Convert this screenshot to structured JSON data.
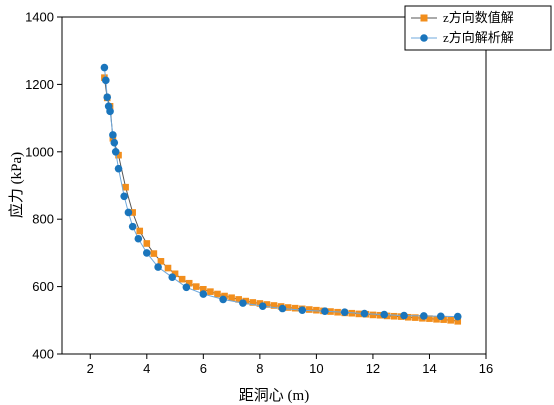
{
  "chart_data": {
    "type": "line",
    "xlabel": "距洞心 (m)",
    "ylabel": "应力 (kPa)",
    "xlim": [
      1,
      16
    ],
    "ylim": [
      400,
      1400
    ],
    "x_ticks": [
      2,
      4,
      6,
      8,
      10,
      12,
      14,
      16
    ],
    "y_ticks": [
      400,
      600,
      800,
      1000,
      1200,
      1400
    ],
    "grid": false,
    "legend_position": "top-right",
    "series": [
      {
        "name": "z方向数值解",
        "color": "#F28E1C",
        "marker": "square",
        "x": [
          2.5,
          2.6,
          2.7,
          2.8,
          3.0,
          3.25,
          3.5,
          3.75,
          4.0,
          4.25,
          4.5,
          4.75,
          5.0,
          5.25,
          5.5,
          5.75,
          6.0,
          6.25,
          6.5,
          6.75,
          7.0,
          7.25,
          7.5,
          7.75,
          8.0,
          8.25,
          8.5,
          8.75,
          9.0,
          9.25,
          9.5,
          9.75,
          10.0,
          10.25,
          10.5,
          10.75,
          11.0,
          11.25,
          11.5,
          11.75,
          12.0,
          12.25,
          12.5,
          12.75,
          13.0,
          13.25,
          13.5,
          13.75,
          14.0,
          14.25,
          14.5,
          14.75,
          15.0
        ],
        "values": [
          1220,
          1160,
          1135,
          1040,
          990,
          895,
          820,
          765,
          728,
          698,
          675,
          655,
          638,
          622,
          610,
          600,
          592,
          585,
          578,
          572,
          567,
          562,
          557,
          553,
          550,
          547,
          544,
          541,
          538,
          536,
          534,
          532,
          530,
          528,
          526,
          524,
          522,
          521,
          519,
          518,
          516,
          515,
          513,
          512,
          511,
          509,
          508,
          506,
          505,
          503,
          502,
          500,
          497
        ]
      },
      {
        "name": "z方向解析解",
        "color": "#1A75BC",
        "marker": "circle",
        "x": [
          2.5,
          2.55,
          2.6,
          2.65,
          2.7,
          2.8,
          2.85,
          2.9,
          3.0,
          3.2,
          3.35,
          3.5,
          3.7,
          4.0,
          4.4,
          4.9,
          5.4,
          6.0,
          6.7,
          7.4,
          8.1,
          8.8,
          9.5,
          10.3,
          11.0,
          11.7,
          12.4,
          13.1,
          13.8,
          14.4,
          15.0
        ],
        "values": [
          1250,
          1212,
          1162,
          1135,
          1120,
          1050,
          1027,
          1000,
          950,
          868,
          820,
          778,
          742,
          700,
          658,
          628,
          598,
          578,
          562,
          551,
          542,
          535,
          530,
          527,
          524,
          520,
          517,
          514,
          513,
          512,
          511
        ]
      }
    ]
  }
}
